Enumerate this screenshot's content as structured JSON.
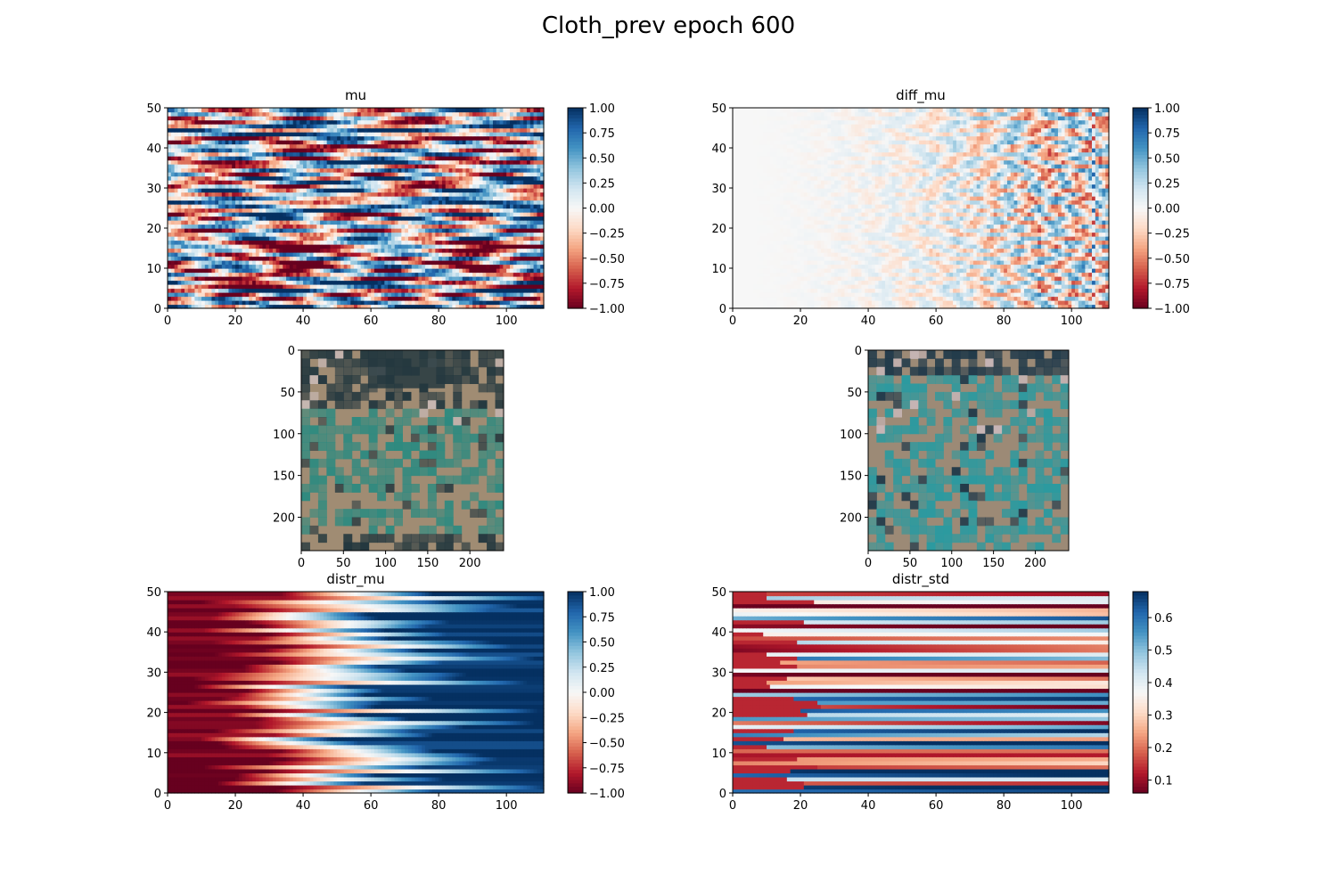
{
  "figure": {
    "suptitle": "Cloth_prev epoch 600"
  },
  "chart_data": [
    {
      "id": "mu",
      "type": "heatmap",
      "title": "mu",
      "xlabel": "",
      "ylabel": "",
      "xlim": [
        0,
        111
      ],
      "ylim": [
        0,
        50
      ],
      "xticks": [
        0,
        20,
        40,
        60,
        80,
        100
      ],
      "yticks": [
        0,
        10,
        20,
        30,
        40,
        50
      ],
      "colormap": "RdBu",
      "colorbar": {
        "range": [
          -1.0,
          1.0
        ],
        "ticks": [
          "1.00",
          "0.75",
          "0.50",
          "0.25",
          "0.00",
          "−0.25",
          "−0.50",
          "−0.75",
          "−1.00"
        ]
      },
      "grid": false,
      "pattern": "high-contrast horizontal stripes with wavy, noisy variation across x"
    },
    {
      "id": "diff_mu",
      "type": "heatmap",
      "title": "diff_mu",
      "xlabel": "",
      "ylabel": "",
      "xlim": [
        0,
        111
      ],
      "ylim": [
        0,
        50
      ],
      "xticks": [
        0,
        20,
        40,
        60,
        80,
        100
      ],
      "yticks": [
        0,
        10,
        20,
        30,
        40,
        50
      ],
      "colormap": "RdBu",
      "colorbar": {
        "range": [
          -1.0,
          1.0
        ],
        "ticks": [
          "1.00",
          "0.75",
          "0.50",
          "0.25",
          "0.00",
          "−0.25",
          "−0.50",
          "−0.75",
          "−1.00"
        ]
      },
      "grid": false,
      "pattern": "near zero at low x, small-magnitude noisy stripes increasing in amplitude toward x≈90, thin dotted column near x≈107"
    },
    {
      "id": "image_left",
      "type": "image",
      "title": "",
      "xlim": [
        0,
        240
      ],
      "ylim": [
        240,
        0
      ],
      "xticks": [
        0,
        50,
        100,
        150,
        200
      ],
      "yticks": [
        0,
        50,
        100,
        150,
        200
      ],
      "palette": {
        "ground": "#a08c73",
        "vegetation": "#2e8a80",
        "dark": "#24383f",
        "light": "#c8b8b4"
      }
    },
    {
      "id": "image_right",
      "type": "image",
      "title": "",
      "xlim": [
        0,
        240
      ],
      "ylim": [
        240,
        0
      ],
      "xticks": [
        0,
        50,
        100,
        150,
        200
      ],
      "yticks": [
        0,
        50,
        100,
        150,
        200
      ],
      "palette": {
        "ground": "#9c8a76",
        "vegetation": "#2a9aa0",
        "dark": "#213a4a",
        "light": "#c9b7b8"
      }
    },
    {
      "id": "distr_mu",
      "type": "heatmap",
      "title": "distr_mu",
      "xlabel": "",
      "ylabel": "",
      "xlim": [
        0,
        111
      ],
      "ylim": [
        0,
        50
      ],
      "xticks": [
        0,
        20,
        40,
        60,
        80,
        100
      ],
      "yticks": [
        0,
        10,
        20,
        30,
        40,
        50
      ],
      "colormap": "RdBu",
      "colorbar": {
        "range": [
          -1.0,
          1.0
        ],
        "ticks": [
          "1.00",
          "0.75",
          "0.50",
          "0.25",
          "0.00",
          "−0.25",
          "−0.50",
          "−0.75",
          "−1.00"
        ]
      },
      "grid": false,
      "pattern": "each row rises monotonically from about −1 at x=0 to about +1 at x=111, with per-row offsets"
    },
    {
      "id": "distr_std",
      "type": "heatmap",
      "title": "distr_std",
      "xlabel": "",
      "ylabel": "",
      "xlim": [
        0,
        111
      ],
      "ylim": [
        0,
        50
      ],
      "xticks": [
        0,
        20,
        40,
        60,
        80,
        100
      ],
      "yticks": [
        0,
        10,
        20,
        30,
        40,
        50
      ],
      "colormap": "RdBu",
      "colorbar": {
        "range": [
          0.06,
          0.68
        ],
        "ticks": [
          "0.6",
          "0.5",
          "0.4",
          "0.3",
          "0.2",
          "0.1"
        ]
      },
      "grid": false,
      "pattern": "horizontal stripes, each row slowly varying across x between about 0.06 and 0.68"
    }
  ]
}
